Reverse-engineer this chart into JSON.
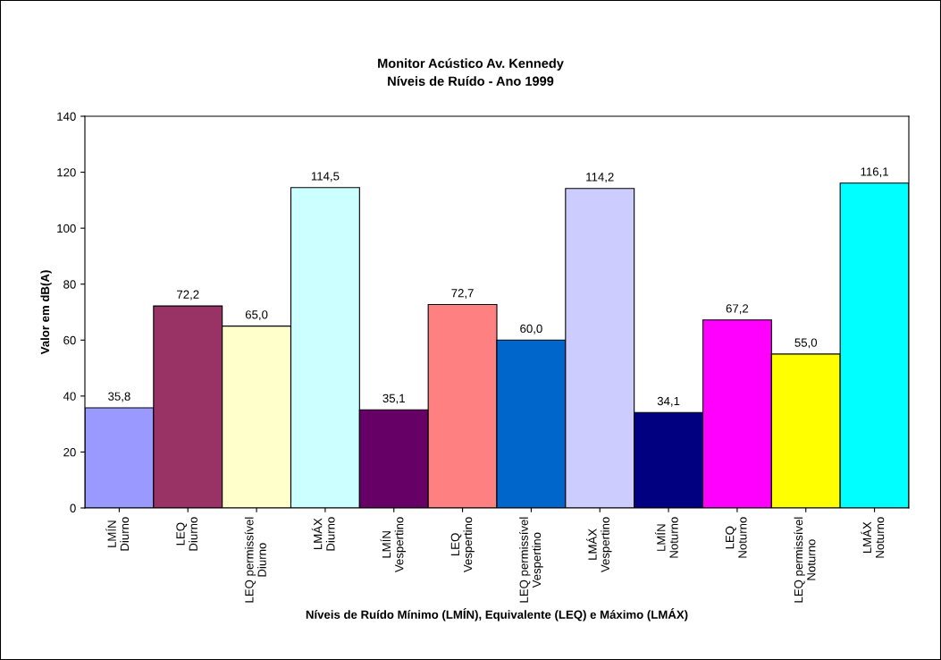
{
  "chart_data": {
    "type": "bar",
    "title": "Monitor Acústico Av. Kennedy",
    "subtitle": "Níveis de Ruído - Ano 1999",
    "xlabel": "Níveis de Ruído Mínimo (LMÍN), Equivalente (LEQ) e Máximo (LMÁX)",
    "ylabel": "Valor em dB(A)",
    "categories": [
      "LMÍN\nDiurno",
      "LEQ\nDiurno",
      "LEQ permissível\nDiurno",
      "LMÁX\nDiurno",
      "LMÍN\nVespertino",
      "LEQ\nVespertino",
      "LEQ permissível\nVespertino",
      "LMÁX\nVespertino",
      "LMÍN\nNoturno",
      "LEQ\nNoturno",
      "LEQ permissível\nNoturno",
      "LMÁX\nNoturno"
    ],
    "values": [
      35.8,
      72.2,
      65.0,
      114.5,
      35.1,
      72.7,
      60.0,
      114.2,
      34.1,
      67.2,
      55.0,
      116.1
    ],
    "value_labels": [
      "35,8",
      "72,2",
      "65,0",
      "114,5",
      "35,1",
      "72,7",
      "60,0",
      "114,2",
      "34,1",
      "67,2",
      "55,0",
      "116,1"
    ],
    "colors": [
      "#9999ff",
      "#993366",
      "#ffffcc",
      "#ccffff",
      "#660066",
      "#ff8080",
      "#0066cc",
      "#ccccff",
      "#000080",
      "#ff00ff",
      "#ffff00",
      "#00ffff"
    ],
    "ylim": [
      0,
      140
    ],
    "yticks": [
      0,
      20,
      40,
      60,
      80,
      100,
      120,
      140
    ],
    "grid": false,
    "legend": false
  }
}
